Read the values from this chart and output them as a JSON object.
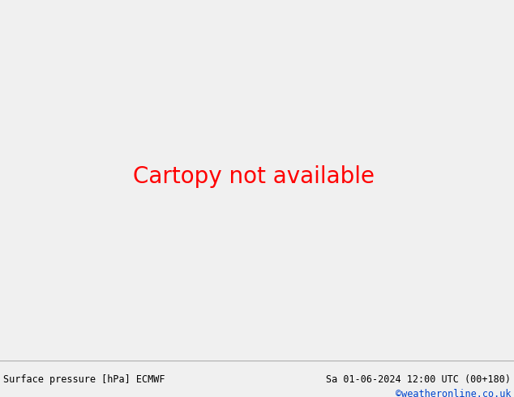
{
  "title_left": "Surface pressure [hPa] ECMWF",
  "title_right": "Sa 01-06-2024 12:00 UTC (00+180)",
  "copyright": "©weatheronline.co.uk",
  "ocean_color": "#d8dce8",
  "land_color": "#c8e0b0",
  "gray_color": "#b0b0b8",
  "bottom_bar_color": "#f0f0f0",
  "red": "#dd0000",
  "blue": "#0000cc",
  "black": "#000000",
  "bottom_line_color": "#aaaaaa",
  "font_size_bottom": 8.5,
  "font_size_label": 7.5,
  "map_extent": [
    -28,
    45,
    27,
    72
  ],
  "figsize": [
    6.34,
    4.9
  ],
  "dpi": 100
}
